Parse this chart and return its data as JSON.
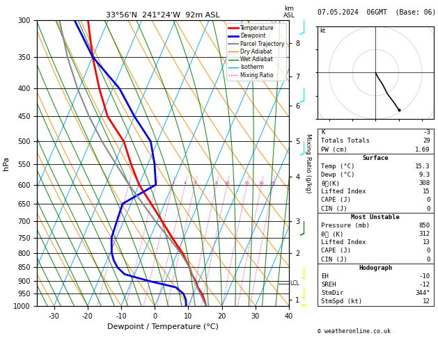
{
  "title_left": "33°56'N  241°24'W  92m ASL",
  "title_right": "07.05.2024  06GMT  (Base: 06)",
  "xlabel": "Dewpoint / Temperature (°C)",
  "ylabel_left": "hPa",
  "ylabel_right2": "Mixing Ratio (g/kg)",
  "pressure_levels": [
    300,
    350,
    400,
    450,
    500,
    550,
    600,
    650,
    700,
    750,
    800,
    850,
    900,
    950,
    1000
  ],
  "temp_range": [
    -35,
    40
  ],
  "lcl_pressure": 910,
  "mixing_ratio_labels": [
    1,
    2,
    3,
    4,
    5,
    8,
    10,
    15,
    20,
    25
  ],
  "km_ticks": [
    1,
    2,
    3,
    4,
    5,
    6,
    7,
    8
  ],
  "km_pressures": [
    975,
    800,
    700,
    580,
    500,
    430,
    380,
    330
  ],
  "skew": 30,
  "p_min": 300,
  "p_max": 1000,
  "colors": {
    "temperature": "#ff0000",
    "dewpoint": "#0000ee",
    "parcel": "#888888",
    "dry_adiabat": "#ff8c00",
    "wet_adiabat": "#008000",
    "isotherm": "#00aaff",
    "mixing_ratio": "#ff00bb",
    "background": "#ffffff",
    "gridline": "#000000"
  },
  "legend_items": [
    {
      "label": "Temperature",
      "color": "#ff0000",
      "lw": 2,
      "ls": "-"
    },
    {
      "label": "Dewpoint",
      "color": "#0000ee",
      "lw": 2,
      "ls": "-"
    },
    {
      "label": "Parcel Trajectory",
      "color": "#888888",
      "lw": 1.5,
      "ls": "-"
    },
    {
      "label": "Dry Adiabat",
      "color": "#ff8c00",
      "lw": 1,
      "ls": "-"
    },
    {
      "label": "Wet Adiabat",
      "color": "#008000",
      "lw": 1,
      "ls": "-"
    },
    {
      "label": "Isotherm",
      "color": "#00aaff",
      "lw": 1,
      "ls": "-"
    },
    {
      "label": "Mixing Ratio",
      "color": "#ff00bb",
      "lw": 1,
      "ls": ":"
    }
  ],
  "stats_lines": [
    {
      "text": "K",
      "value": "-3",
      "header": false
    },
    {
      "text": "Totals Totals",
      "value": "29",
      "header": false
    },
    {
      "text": "PW (cm)",
      "value": "1.69",
      "header": false
    },
    {
      "text": "Surface",
      "value": "",
      "header": true
    },
    {
      "text": "Temp (°C)",
      "value": "15.3",
      "header": false
    },
    {
      "text": "Dewp (°C)",
      "value": "9.3",
      "header": false
    },
    {
      "text": "θᴇ(K)",
      "value": "308",
      "header": false
    },
    {
      "text": "Lifted Index",
      "value": "15",
      "header": false
    },
    {
      "text": "CAPE (J)",
      "value": "0",
      "header": false
    },
    {
      "text": "CIN (J)",
      "value": "0",
      "header": false
    },
    {
      "text": "Most Unstable",
      "value": "",
      "header": true
    },
    {
      "text": "Pressure (mb)",
      "value": "850",
      "header": false
    },
    {
      "text": "θᴇ (K)",
      "value": "312",
      "header": false
    },
    {
      "text": "Lifted Index",
      "value": "13",
      "header": false
    },
    {
      "text": "CAPE (J)",
      "value": "0",
      "header": false
    },
    {
      "text": "CIN (J)",
      "value": "0",
      "header": false
    },
    {
      "text": "Hodograph",
      "value": "",
      "header": true
    },
    {
      "text": "EH",
      "value": "-10",
      "header": false
    },
    {
      "text": "SREH",
      "value": "-12",
      "header": false
    },
    {
      "text": "StmDir",
      "value": "344°",
      "header": false
    },
    {
      "text": "StmSpd (kt)",
      "value": "12",
      "header": false
    }
  ],
  "section_dividers_before": [
    3,
    10,
    16
  ],
  "temperature_profile": {
    "pressure": [
      1000,
      975,
      950,
      925,
      900,
      875,
      850,
      825,
      800,
      775,
      750,
      700,
      650,
      600,
      550,
      500,
      450,
      400,
      350,
      300
    ],
    "temp": [
      15.3,
      14.0,
      12.5,
      10.5,
      9.0,
      7.0,
      5.5,
      3.5,
      1.5,
      -1.0,
      -3.5,
      -8.5,
      -14.0,
      -20.0,
      -25.0,
      -30.0,
      -38.0,
      -44.0,
      -50.0,
      -56.0
    ]
  },
  "dewpoint_profile": {
    "pressure": [
      1000,
      975,
      950,
      925,
      900,
      875,
      850,
      825,
      800,
      775,
      750,
      700,
      650,
      600,
      550,
      500,
      450,
      400,
      350,
      300
    ],
    "temp": [
      9.3,
      8.5,
      7.0,
      4.0,
      -5.0,
      -13.0,
      -16.0,
      -18.0,
      -19.5,
      -20.5,
      -21.5,
      -22.0,
      -22.5,
      -15.0,
      -18.0,
      -22.0,
      -30.0,
      -38.0,
      -50.0,
      -60.0
    ]
  },
  "parcel_profile": {
    "pressure": [
      1000,
      950,
      910,
      850,
      800,
      750,
      700,
      650,
      600,
      550,
      500,
      450,
      400,
      350,
      300
    ],
    "temp": [
      15.3,
      12.0,
      9.3,
      5.5,
      1.0,
      -4.5,
      -10.5,
      -16.5,
      -23.0,
      -29.5,
      -36.5,
      -43.5,
      -50.5,
      -57.5,
      -64.5
    ]
  },
  "hodograph_u": [
    0,
    1,
    3,
    5,
    8,
    10
  ],
  "hodograph_v": [
    0,
    -2,
    -5,
    -9,
    -13,
    -16
  ],
  "copyright": "© weatheronline.co.uk"
}
